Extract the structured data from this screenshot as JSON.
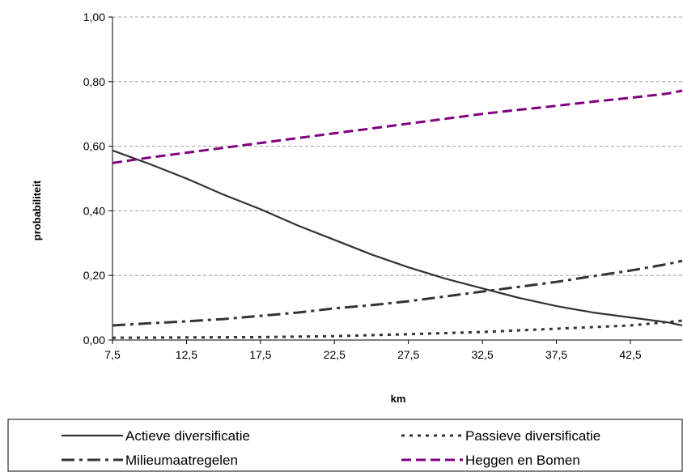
{
  "chart_data": {
    "type": "line",
    "title": "",
    "xlabel": "km",
    "ylabel": "probabiliteit",
    "xlim": [
      7.5,
      46
    ],
    "ylim": [
      0,
      1
    ],
    "x_ticks": [
      7.5,
      12.5,
      17.5,
      22.5,
      27.5,
      32.5,
      37.5,
      42.5
    ],
    "x_tick_labels": [
      "7,5",
      "12,5",
      "17,5",
      "22,5",
      "27,5",
      "32,5",
      "37,5",
      "42,5"
    ],
    "y_ticks": [
      0,
      0.2,
      0.4,
      0.6,
      0.8,
      1.0
    ],
    "y_tick_labels": [
      "0,00",
      "0,20",
      "0,40",
      "0,60",
      "0,80",
      "1,00"
    ],
    "grid": "horizontal dashed",
    "legend_position": "bottom",
    "series": [
      {
        "name": "Actieve diversificatie",
        "style": "solid",
        "color": "#333333",
        "x": [
          7.5,
          10,
          12.5,
          15,
          17.5,
          20,
          22.5,
          25,
          27.5,
          30,
          32.5,
          35,
          37.5,
          40,
          42.5,
          45,
          46
        ],
        "y": [
          0.587,
          0.545,
          0.5,
          0.45,
          0.405,
          0.355,
          0.31,
          0.265,
          0.225,
          0.19,
          0.16,
          0.13,
          0.105,
          0.085,
          0.07,
          0.055,
          0.045
        ]
      },
      {
        "name": "Passieve diversificatie",
        "style": "dotted",
        "color": "#333333",
        "x": [
          7.5,
          12.5,
          17.5,
          22.5,
          27.5,
          32.5,
          37.5,
          42.5,
          46
        ],
        "y": [
          0.007,
          0.008,
          0.009,
          0.012,
          0.018,
          0.025,
          0.035,
          0.045,
          0.06
        ]
      },
      {
        "name": "Milieumaatregelen",
        "style": "dash-dot",
        "color": "#333333",
        "x": [
          7.5,
          10,
          12.5,
          15,
          17.5,
          20,
          22.5,
          25,
          27.5,
          30,
          32.5,
          35,
          37.5,
          40,
          42.5,
          45,
          46
        ],
        "y": [
          0.045,
          0.052,
          0.058,
          0.065,
          0.075,
          0.085,
          0.098,
          0.108,
          0.12,
          0.135,
          0.15,
          0.165,
          0.18,
          0.198,
          0.215,
          0.235,
          0.245
        ]
      },
      {
        "name": "Heggen en Bomen",
        "style": "dashed",
        "color": "#800080",
        "x": [
          7.5,
          10,
          12.5,
          15,
          17.5,
          20,
          22.5,
          25,
          27.5,
          30,
          32.5,
          35,
          37.5,
          40,
          42.5,
          45,
          46
        ],
        "y": [
          0.548,
          0.565,
          0.58,
          0.595,
          0.61,
          0.625,
          0.64,
          0.655,
          0.67,
          0.685,
          0.7,
          0.713,
          0.725,
          0.738,
          0.75,
          0.763,
          0.772
        ]
      }
    ]
  }
}
